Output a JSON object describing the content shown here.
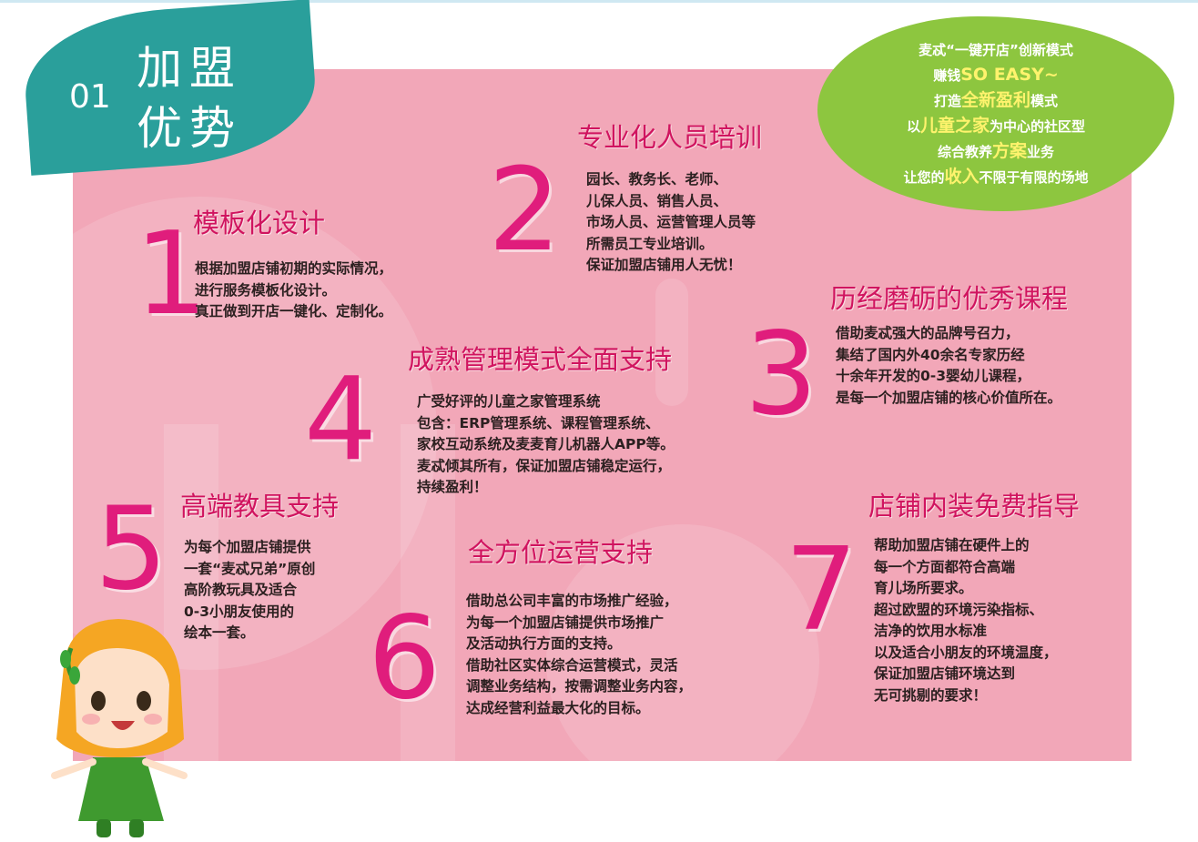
{
  "badge": {
    "number": "01",
    "title": "加盟优势"
  },
  "highlight": {
    "lines": [
      {
        "parts": [
          {
            "text": "麦忒“一键开店”创新模式",
            "hl": false
          }
        ]
      },
      {
        "parts": [
          {
            "text": "赚钱",
            "hl": false
          },
          {
            "text": "SO EASY~",
            "hl": true
          }
        ]
      },
      {
        "parts": [
          {
            "text": "打造",
            "hl": false
          },
          {
            "text": "全新盈利",
            "hl": true
          },
          {
            "text": "模式",
            "hl": false
          }
        ]
      },
      {
        "parts": [
          {
            "text": "以",
            "hl": false
          },
          {
            "text": "儿童之家",
            "hl": true
          },
          {
            "text": "为中心的社区型",
            "hl": false
          }
        ]
      },
      {
        "parts": [
          {
            "text": "综合教养",
            "hl": false
          },
          {
            "text": "方案",
            "hl": true
          },
          {
            "text": "业务",
            "hl": false
          }
        ]
      },
      {
        "parts": [
          {
            "text": "让您的",
            "hl": false
          },
          {
            "text": "收入",
            "hl": true
          },
          {
            "text": "不限于有限的场地",
            "hl": false
          }
        ]
      }
    ]
  },
  "items": [
    {
      "number": "1",
      "title": "模板化设计",
      "lines": [
        "根据加盟店铺初期的实际情况，",
        "进行服务模板化设计。",
        "真正做到开店一键化、定制化。"
      ]
    },
    {
      "number": "2",
      "title": "专业化人员培训",
      "lines": [
        "园长、教务长、老师、",
        "儿保人员、销售人员、",
        "市场人员、运营管理人员等",
        "所需员工专业培训。",
        "保证加盟店铺用人无忧！"
      ]
    },
    {
      "number": "3",
      "title": "历经磨砺的优秀课程",
      "lines": [
        "借助麦忒强大的品牌号召力，",
        "集结了国内外40余名专家历经",
        "十余年开发的0-3婴幼儿课程，",
        "是每一个加盟店铺的核心价值所在。"
      ]
    },
    {
      "number": "4",
      "title": "成熟管理模式全面支持",
      "lines": [
        "广受好评的儿童之家管理系统",
        "包含：ERP管理系统、课程管理系统、",
        "家校互动系统及麦麦育儿机器人APP等。",
        "麦忒倾其所有，保证加盟店铺稳定运行，",
        "持续盈利！"
      ]
    },
    {
      "number": "5",
      "title": "高端教具支持",
      "lines": [
        "为每个加盟店铺提供",
        "一套“麦忒兄弟”原创",
        "高阶教玩具及适合",
        "0-3小朋友使用的",
        "绘本一套。"
      ]
    },
    {
      "number": "6",
      "title": "全方位运营支持",
      "lines": [
        "借助总公司丰富的市场推广经验，",
        "为每一个加盟店铺提供市场推广",
        "及活动执行方面的支持。",
        "借助社区实体综合运营模式，灵活",
        "调整业务结构，按需调整业务内容，",
        "达成经营利益最大化的目标。"
      ]
    },
    {
      "number": "7",
      "title": "店铺内装免费指导",
      "lines": [
        "帮助加盟店铺在硬件上的",
        "每一个方面都符合高端",
        "育儿场所要求。",
        "超过欧盟的环境污染指标、",
        "洁净的饮用水标准",
        "以及适合小朋友的环境温度，",
        "保证加盟店铺环境达到",
        "无可挑剔的要求！"
      ]
    }
  ]
}
